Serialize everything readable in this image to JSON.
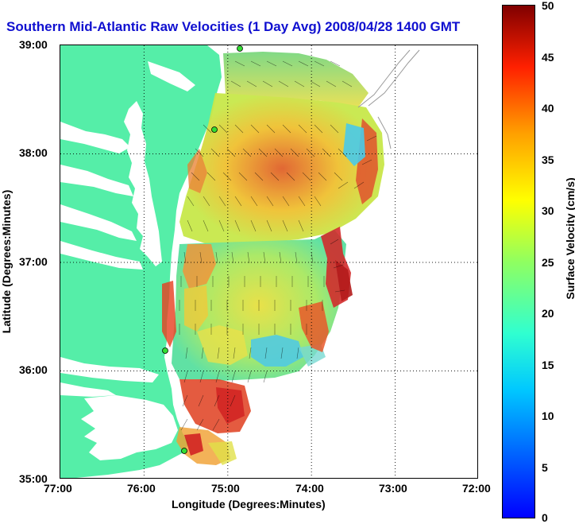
{
  "title": "Southern Mid-Atlantic Raw Velocities (1 Day Avg) 2008/04/28 1400 GMT",
  "axes": {
    "xlabel": "Longitude (Degrees:Minutes)",
    "ylabel": "Latitude (Degrees:Minutes)",
    "x_ticks": [
      "77:00",
      "76:00",
      "75:00",
      "74:00",
      "73:00",
      "72:00"
    ],
    "y_ticks": [
      "39:00",
      "38:00",
      "37:00",
      "36:00",
      "35:00"
    ],
    "xlim": [
      -77,
      -72
    ],
    "ylim": [
      35,
      39
    ],
    "grid": "dotted"
  },
  "colorbar": {
    "title": "Surface Velocity (cm/s)",
    "ticks": [
      "50",
      "45",
      "40",
      "35",
      "30",
      "25",
      "20",
      "15",
      "10",
      "5",
      "0"
    ],
    "range": [
      0,
      50
    ],
    "colormap": "jet"
  },
  "colors": {
    "land": "#55eea8",
    "title": "#1010d0",
    "station": "#33dd33"
  }
}
